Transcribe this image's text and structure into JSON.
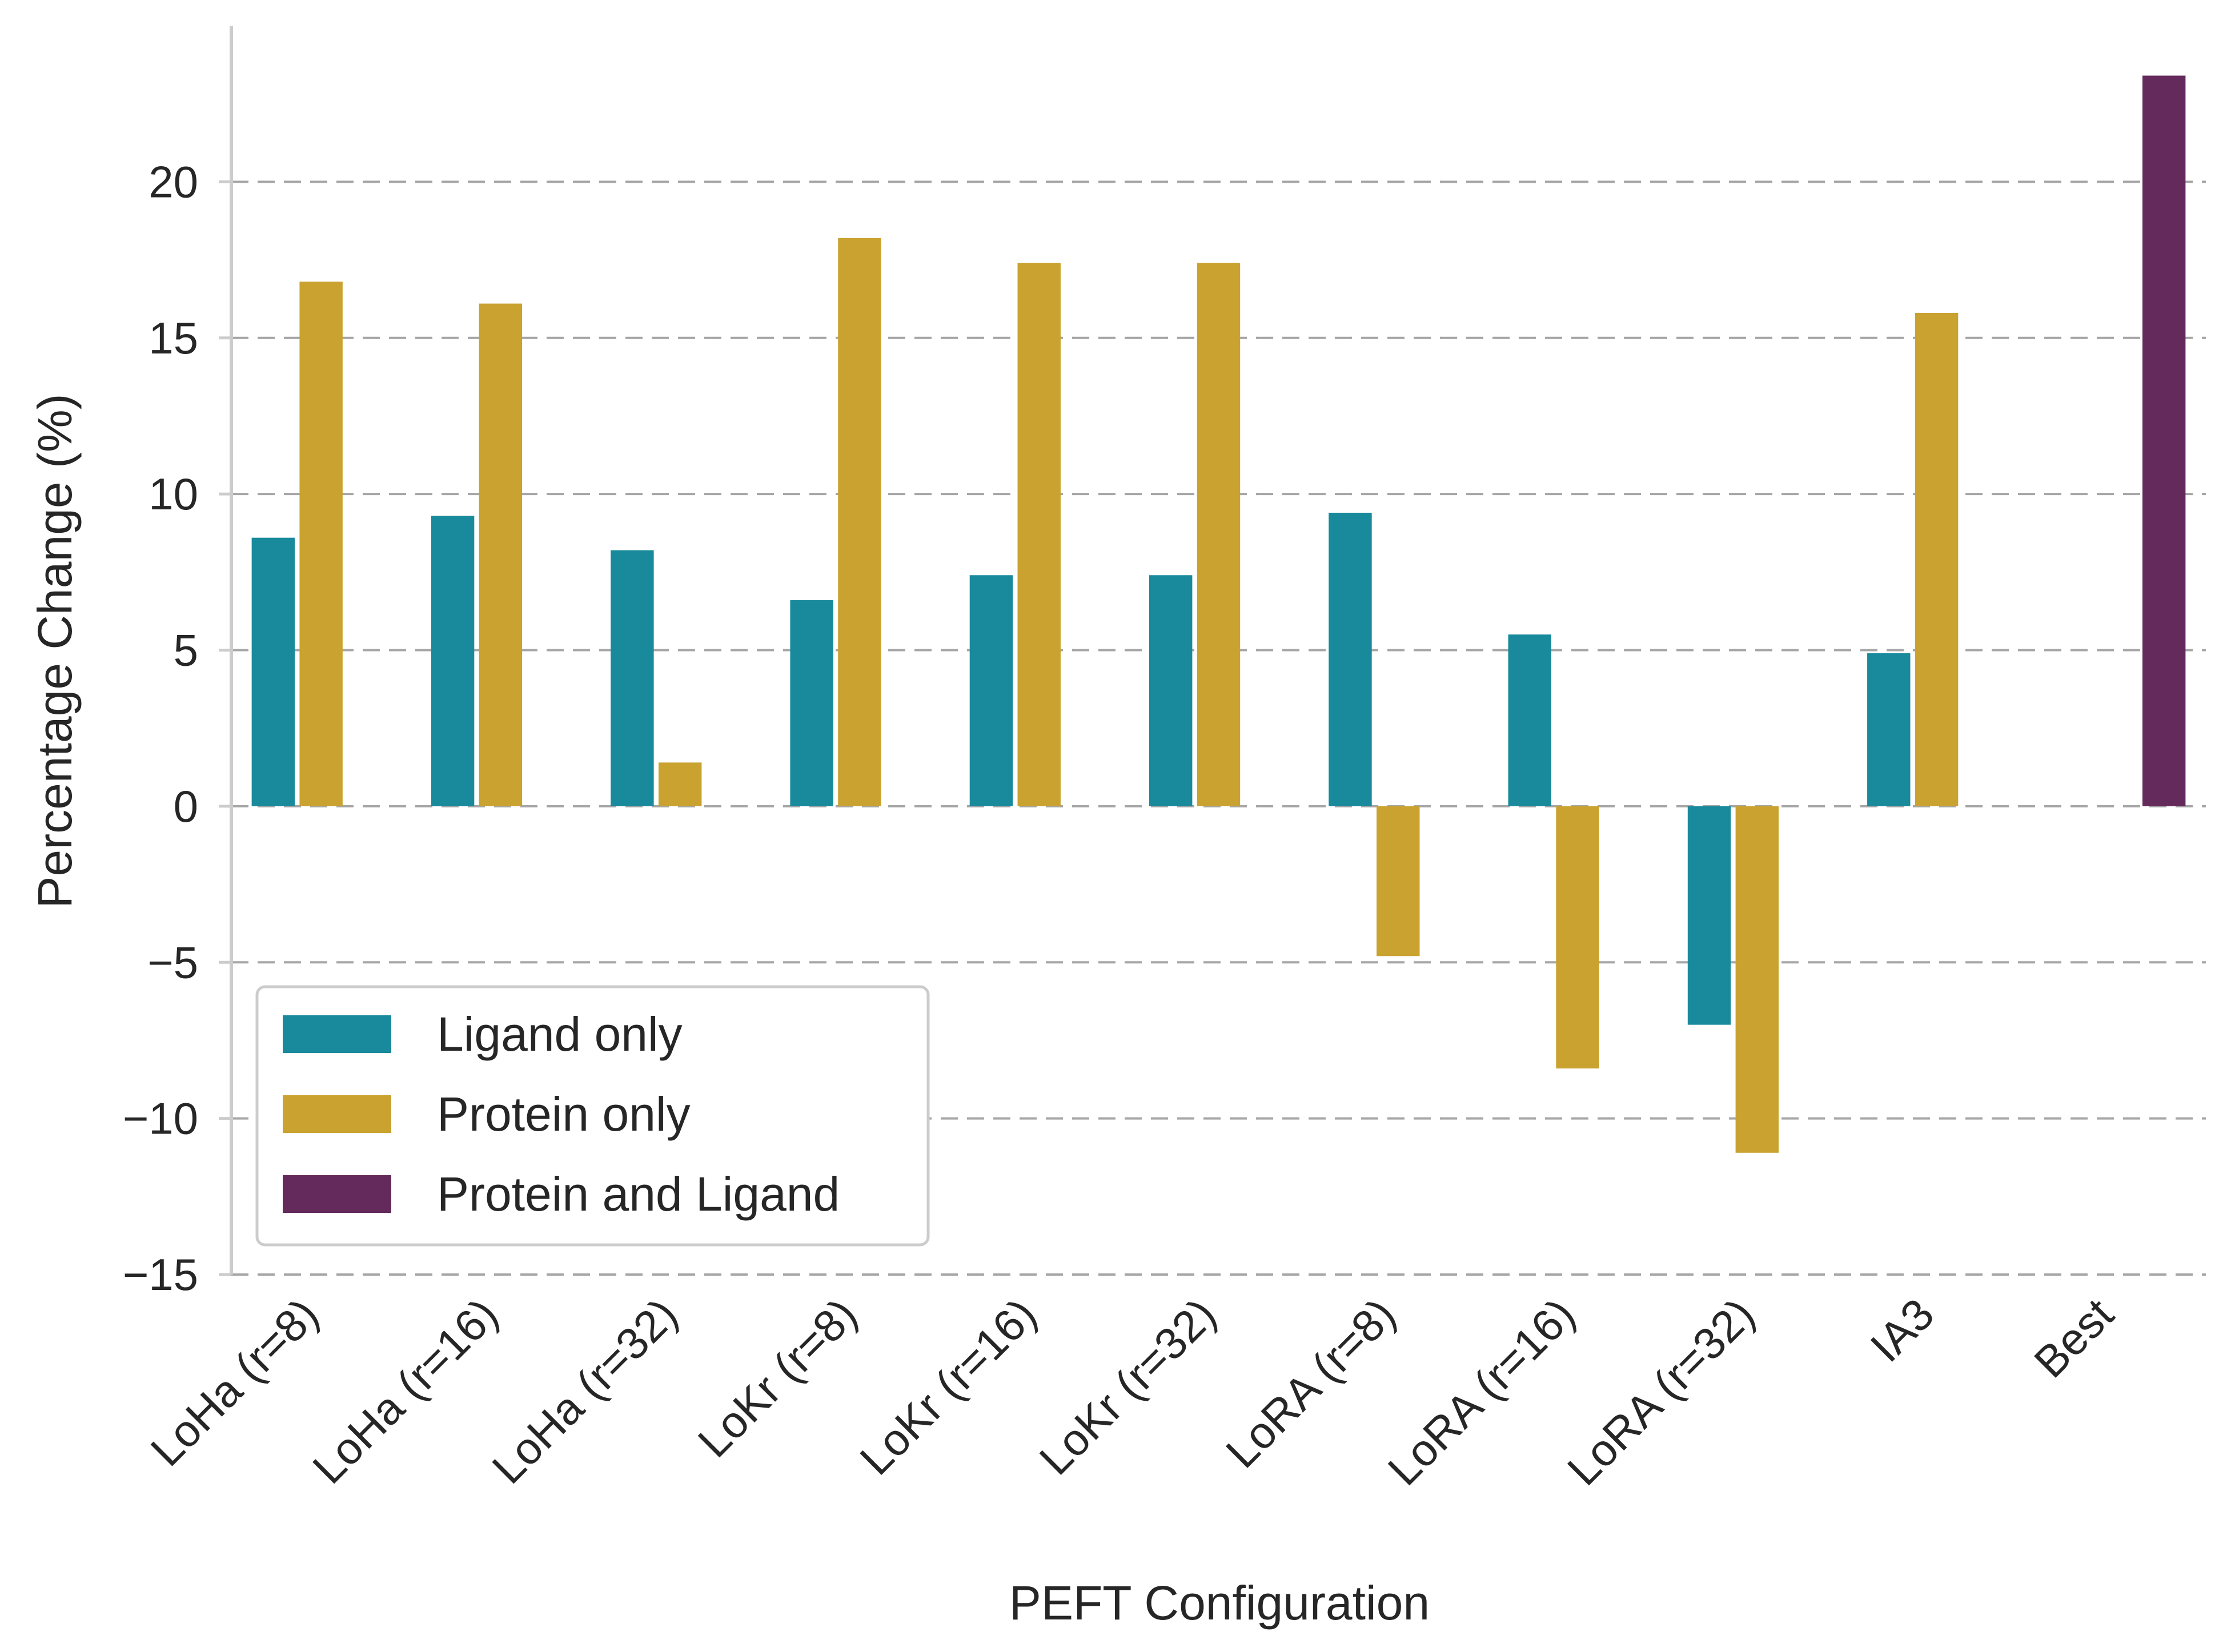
{
  "chart_data": {
    "type": "bar",
    "xlabel": "PEFT Configuration",
    "ylabel": "Percentage Change (%)",
    "ylim": [
      -15,
      25
    ],
    "yticks": [
      -15,
      -10,
      -5,
      0,
      5,
      10,
      15,
      20
    ],
    "ytick_labels": [
      "−15",
      "−10",
      "−5",
      "0",
      "5",
      "10",
      "15",
      "20"
    ],
    "grid": "horizontal dashed",
    "legend_position": "lower-left",
    "categories": [
      "LoHa (r=8)",
      "LoHa (r=16)",
      "LoHa (r=32)",
      "LoKr (r=8)",
      "LoKr (r=16)",
      "LoKr (r=32)",
      "LoRA (r=8)",
      "LoRA (r=16)",
      "LoRA (r=32)",
      "IA3",
      "Best"
    ],
    "series": [
      {
        "name": "Ligand only",
        "color": "#188A9C",
        "values": [
          8.6,
          9.3,
          8.2,
          6.6,
          7.4,
          7.4,
          9.4,
          5.5,
          -7.0,
          4.9,
          null
        ]
      },
      {
        "name": "Protein only",
        "color": "#C9A230",
        "values": [
          16.8,
          16.1,
          1.4,
          18.2,
          17.4,
          17.4,
          -4.8,
          -8.4,
          -11.1,
          15.8,
          null
        ]
      },
      {
        "name": "Protein and Ligand",
        "color": "#642A5C",
        "values": [
          null,
          null,
          null,
          null,
          null,
          null,
          null,
          null,
          null,
          null,
          23.4
        ]
      }
    ]
  }
}
